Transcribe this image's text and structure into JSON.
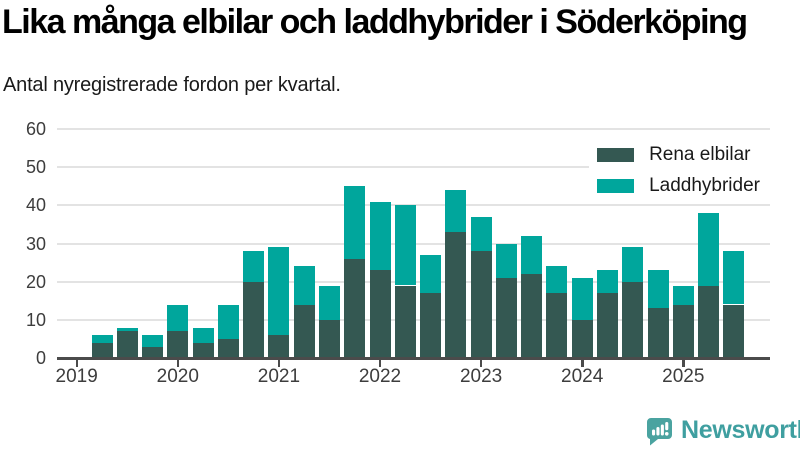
{
  "header": {
    "title": "Lika många elbilar och laddhybrider i Söderköping",
    "subtitle": "Antal nyregistrerade fordon per kvartal."
  },
  "chart_data": {
    "type": "bar",
    "stacked": true,
    "title": "Lika många elbilar och laddhybrider i Söderköping",
    "subtitle": "Antal nyregistrerade fordon per kvartal.",
    "categories": [
      "2019-Q2",
      "2019-Q3",
      "2019-Q4",
      "2020-Q1",
      "2020-Q2",
      "2020-Q3",
      "2020-Q4",
      "2021-Q1",
      "2021-Q2",
      "2021-Q3",
      "2021-Q4",
      "2022-Q1",
      "2022-Q2",
      "2022-Q3",
      "2022-Q4",
      "2023-Q1",
      "2023-Q2",
      "2023-Q3",
      "2023-Q4",
      "2024-Q1",
      "2024-Q2",
      "2024-Q3",
      "2024-Q4",
      "2025-Q1",
      "2025-Q2",
      "2025-Q3"
    ],
    "series": [
      {
        "name": "Rena elbilar",
        "color": "#345852",
        "values": [
          4,
          7,
          3,
          7,
          4,
          5,
          20,
          6,
          14,
          10,
          26,
          23,
          19,
          17,
          33,
          28,
          21,
          22,
          17,
          10,
          17,
          20,
          13,
          14,
          19,
          14
        ]
      },
      {
        "name": "Laddhybrider",
        "color": "#00a69c",
        "values": [
          2,
          1,
          3,
          7,
          4,
          9,
          8,
          23,
          10,
          9,
          19,
          18,
          21,
          10,
          11,
          9,
          9,
          10,
          7,
          11,
          6,
          9,
          10,
          5,
          19,
          14
        ]
      }
    ],
    "totals": [
      6,
      8,
      6,
      14,
      8,
      14,
      28,
      29,
      24,
      19,
      45,
      41,
      40,
      27,
      44,
      37,
      30,
      32,
      24,
      21,
      23,
      29,
      23,
      19,
      38,
      28
    ],
    "xlabel": "",
    "ylabel": "",
    "ylim": [
      0,
      60
    ],
    "yticks": [
      0,
      10,
      20,
      30,
      40,
      50,
      60
    ],
    "xticks": [
      "2019",
      "2020",
      "2021",
      "2022",
      "2023",
      "2024",
      "2025"
    ],
    "grid": true,
    "legend_position": "top-right",
    "colors": {
      "grid": "#e3e3e3",
      "axis": "#4b4b4b",
      "tick_text": "#3d3d3d"
    }
  },
  "footer": {
    "brand": "Newsworthy",
    "brand_color": "#3f9fa0",
    "logo_icon": "speech-bubble-bar-chart-icon"
  }
}
